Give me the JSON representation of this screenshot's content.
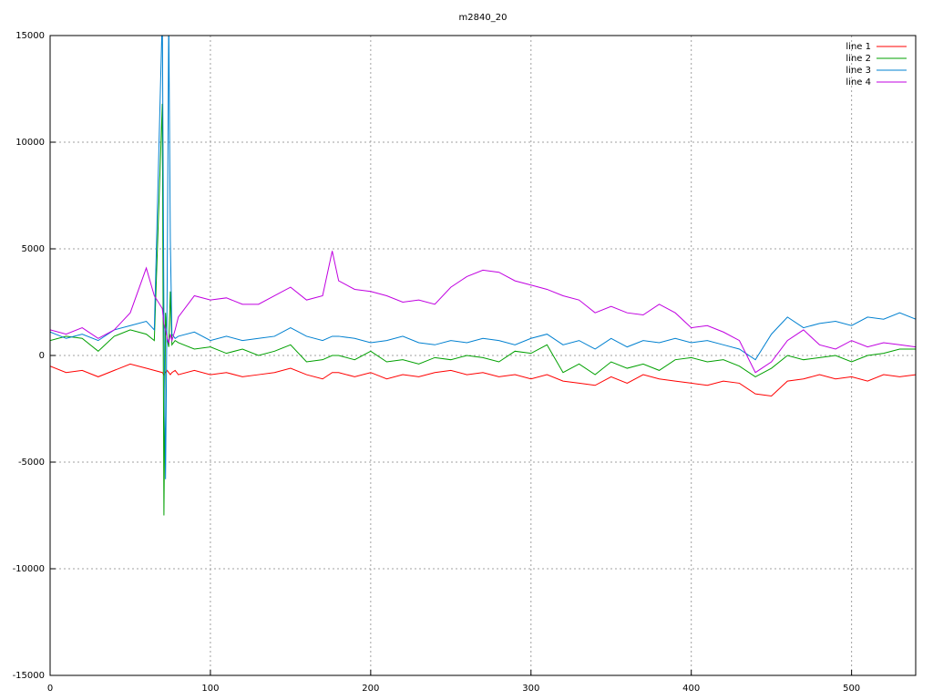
{
  "chart_data": {
    "type": "line",
    "title": "m2840_20",
    "x": [
      0,
      10,
      20,
      30,
      40,
      50,
      60,
      65,
      70,
      71,
      72,
      73,
      74,
      75,
      76,
      78,
      80,
      90,
      100,
      110,
      120,
      130,
      140,
      150,
      160,
      170,
      176,
      180,
      190,
      200,
      210,
      220,
      230,
      240,
      250,
      260,
      270,
      280,
      290,
      300,
      310,
      320,
      330,
      340,
      350,
      360,
      370,
      380,
      390,
      400,
      410,
      420,
      430,
      440,
      450,
      460,
      470,
      480,
      490,
      500,
      510,
      520,
      530,
      540
    ],
    "series": [
      {
        "name": "line 1",
        "color": "#ff0000",
        "values": [
          -500,
          -800,
          -700,
          -1000,
          -700,
          -400,
          -600,
          -700,
          -800,
          -900,
          -800,
          -700,
          -800,
          -900,
          -800,
          -700,
          -900,
          -700,
          -900,
          -800,
          -1000,
          -900,
          -800,
          -600,
          -900,
          -1100,
          -800,
          -800,
          -1000,
          -800,
          -1100,
          -900,
          -1000,
          -800,
          -700,
          -900,
          -800,
          -1000,
          -900,
          -1100,
          -900,
          -1200,
          -1300,
          -1400,
          -1000,
          -1300,
          -900,
          -1100,
          -1200,
          -1300,
          -1400,
          -1200,
          -1300,
          -1800,
          -1900,
          -1200,
          -1100,
          -900,
          -1100,
          -1000,
          -1200,
          -900,
          -1000,
          -900
        ]
      },
      {
        "name": "line 2",
        "color": "#00a000",
        "values": [
          700,
          900,
          800,
          200,
          900,
          1200,
          1000,
          700,
          11800,
          -7500,
          2000,
          800,
          400,
          3000,
          500,
          700,
          600,
          300,
          400,
          100,
          300,
          0,
          200,
          500,
          -300,
          -200,
          0,
          0,
          -200,
          200,
          -300,
          -200,
          -400,
          -100,
          -200,
          0,
          -100,
          -300,
          200,
          100,
          500,
          -800,
          -400,
          -900,
          -300,
          -600,
          -400,
          -700,
          -200,
          -100,
          -300,
          -200,
          -500,
          -1000,
          -600,
          0,
          -200,
          -100,
          0,
          -300,
          0,
          100,
          300,
          300
        ]
      },
      {
        "name": "line 3",
        "color": "#0080d0",
        "values": [
          1100,
          800,
          1000,
          700,
          1200,
          1400,
          1600,
          1200,
          16000,
          2000,
          -5800,
          3000,
          16000,
          5400,
          1000,
          800,
          900,
          1100,
          700,
          900,
          700,
          800,
          900,
          1300,
          900,
          700,
          900,
          900,
          800,
          600,
          700,
          900,
          600,
          500,
          700,
          600,
          800,
          700,
          500,
          800,
          1000,
          500,
          700,
          300,
          800,
          400,
          700,
          600,
          800,
          600,
          700,
          500,
          300,
          -200,
          1000,
          1800,
          1300,
          1500,
          1600,
          1400,
          1800,
          1700,
          2000,
          1700
        ]
      },
      {
        "name": "line 4",
        "color": "#c000e0",
        "values": [
          1200,
          1000,
          1300,
          800,
          1200,
          2000,
          4100,
          2800,
          2200,
          1500,
          1200,
          800,
          600,
          1000,
          700,
          1200,
          1800,
          2800,
          2600,
          2700,
          2400,
          2400,
          2800,
          3200,
          2600,
          2800,
          4900,
          3500,
          3100,
          3000,
          2800,
          2500,
          2600,
          2400,
          3200,
          3700,
          4000,
          3900,
          3500,
          3300,
          3100,
          2800,
          2600,
          2000,
          2300,
          2000,
          1900,
          2400,
          2000,
          1300,
          1400,
          1100,
          700,
          -800,
          -300,
          700,
          1200,
          500,
          300,
          700,
          400,
          600,
          500,
          400
        ]
      }
    ],
    "xlim": [
      0,
      540
    ],
    "xticks": [
      0,
      100,
      200,
      300,
      400,
      500
    ],
    "ylim": [
      -15000,
      15000
    ],
    "yticks": [
      -15000,
      -10000,
      -5000,
      0,
      5000,
      10000,
      15000
    ],
    "grid": true,
    "legend": "top-right"
  }
}
